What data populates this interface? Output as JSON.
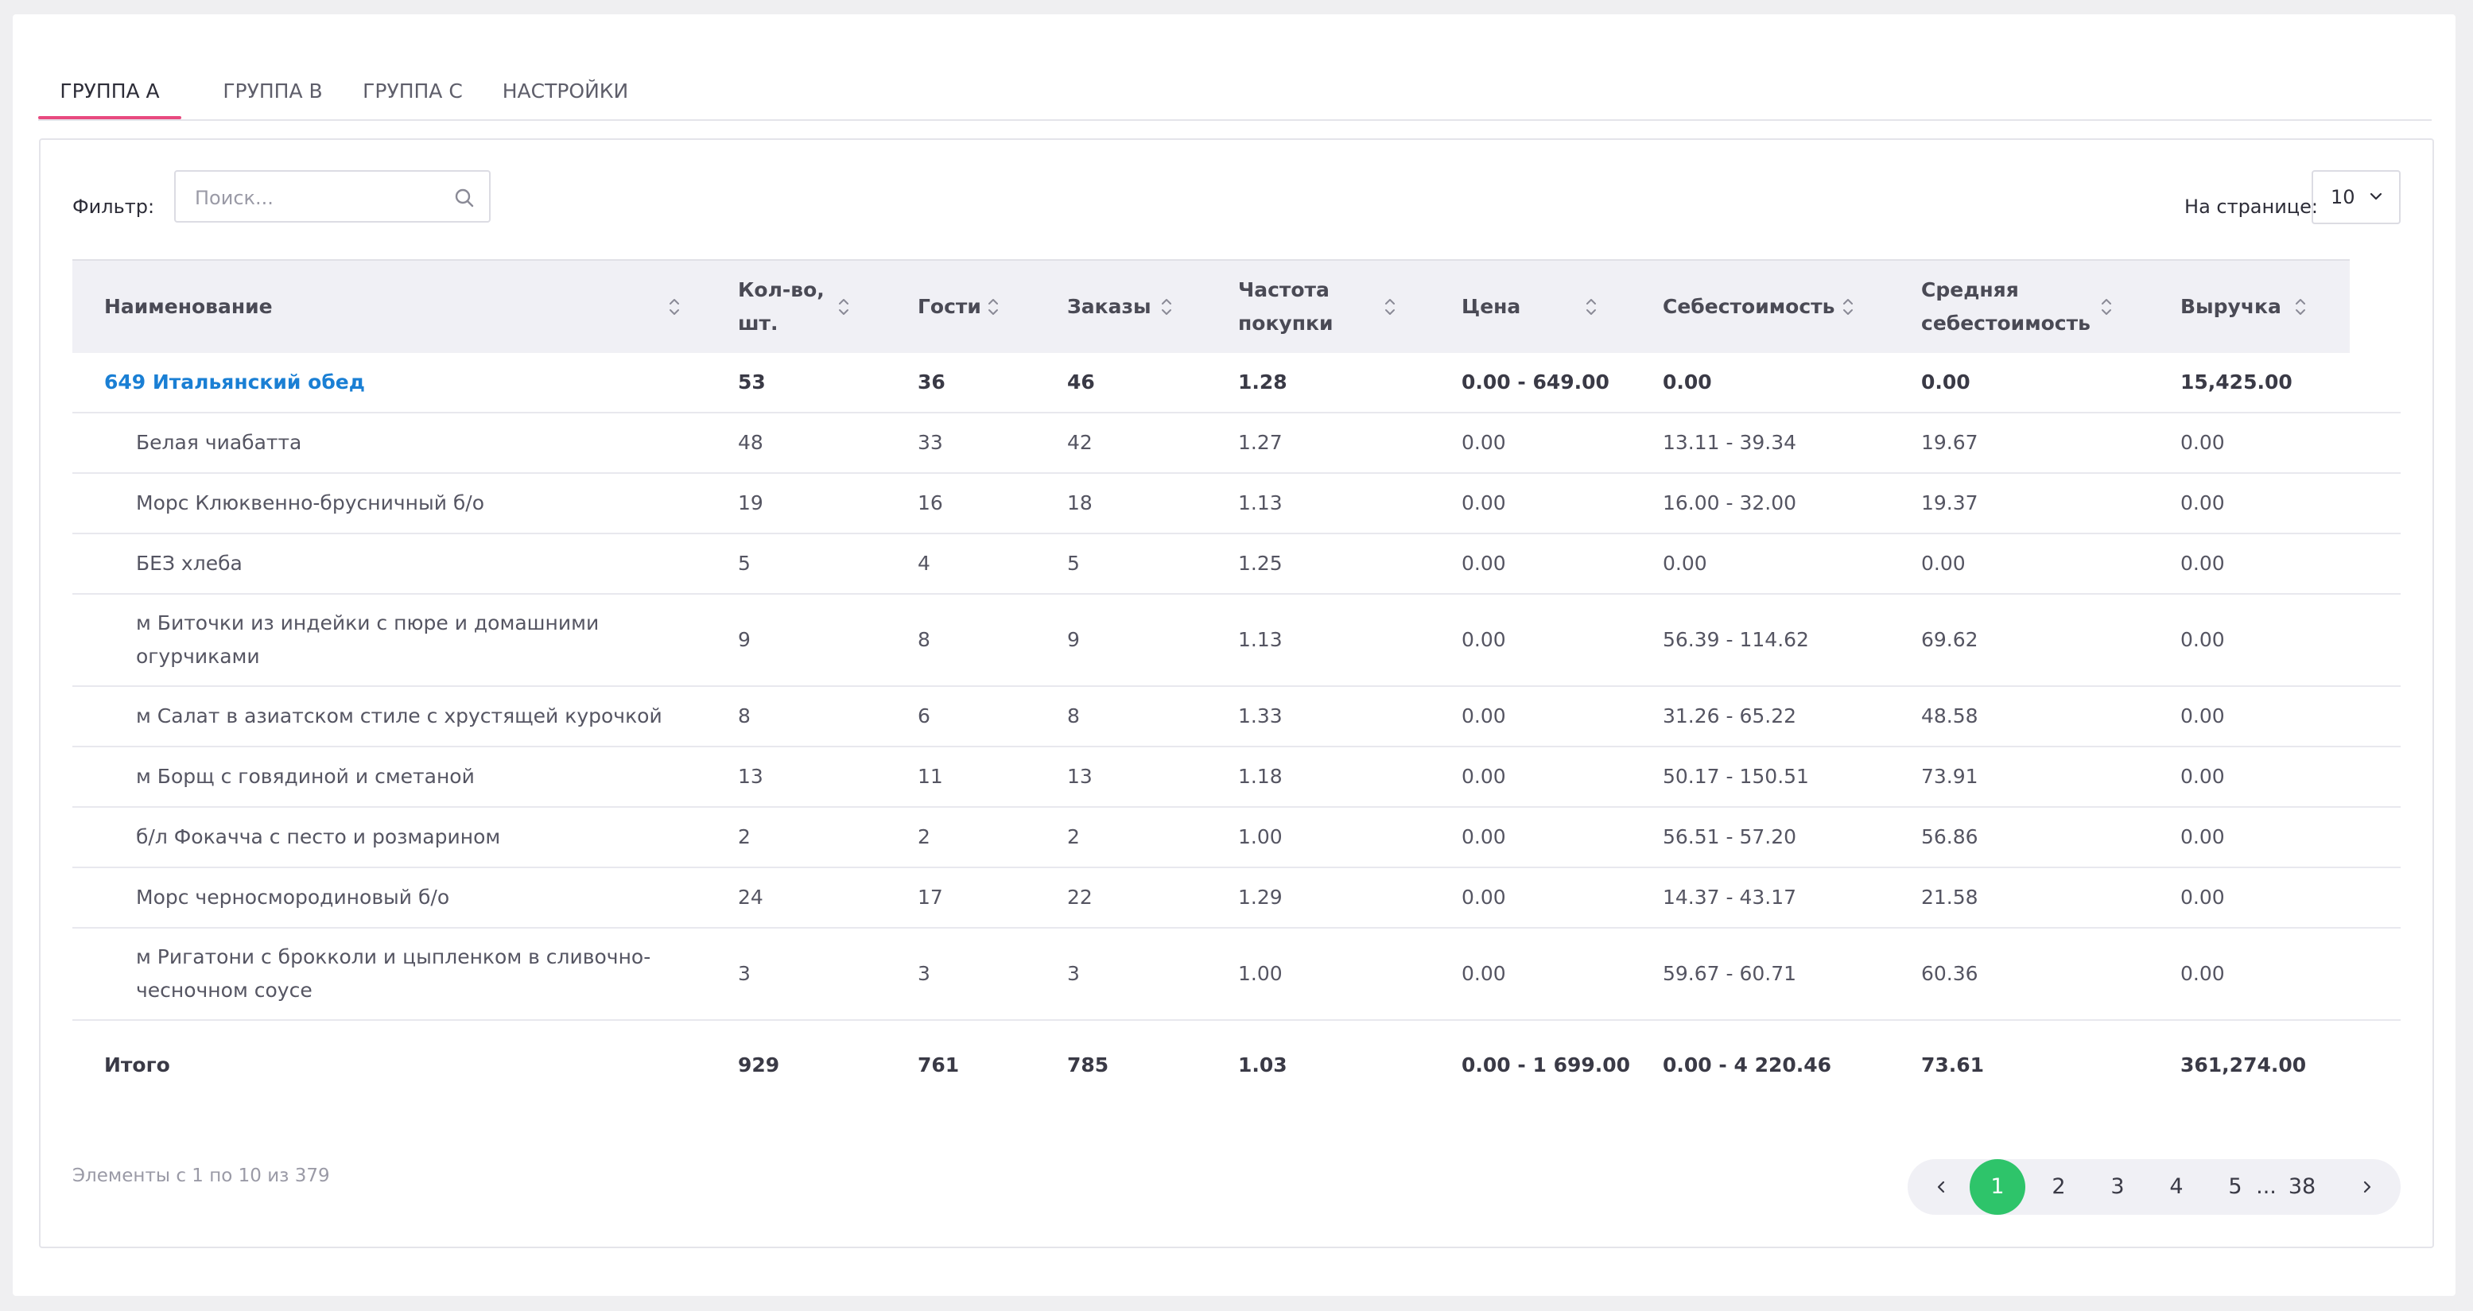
{
  "tabs": [
    {
      "label": "ГРУППА А",
      "active": true
    },
    {
      "label": "ГРУППА В",
      "active": false
    },
    {
      "label": "ГРУППА С",
      "active": false
    },
    {
      "label": "НАСТРОЙКИ",
      "active": false
    }
  ],
  "filter": {
    "label": "Фильтр:",
    "placeholder": "Поиск..."
  },
  "per_page": {
    "label": "На странице:",
    "value": "10"
  },
  "columns": [
    "Наименование",
    "Кол-во,\nшт.",
    "Гости",
    "Заказы",
    "Частота\nпокупки",
    "Цена",
    "Себестоимость",
    "Средняя\nсебестоимость",
    "Выручка"
  ],
  "group_row": [
    "649 Итальянский обед",
    "53",
    "36",
    "46",
    "1.28",
    "0.00 - 649.00",
    "0.00",
    "0.00",
    "15,425.00"
  ],
  "rows": [
    [
      "Белая чиабатта",
      "48",
      "33",
      "42",
      "1.27",
      "0.00",
      "13.11 - 39.34",
      "19.67",
      "0.00"
    ],
    [
      "Морс Клюквенно-брусничный б/о",
      "19",
      "16",
      "18",
      "1.13",
      "0.00",
      "16.00 - 32.00",
      "19.37",
      "0.00"
    ],
    [
      "БЕЗ хлеба",
      "5",
      "4",
      "5",
      "1.25",
      "0.00",
      "0.00",
      "0.00",
      "0.00"
    ],
    [
      "м Биточки из индейки с пюре и домашними огурчиками",
      "9",
      "8",
      "9",
      "1.13",
      "0.00",
      "56.39 - 114.62",
      "69.62",
      "0.00"
    ],
    [
      "м Салат в азиатском стиле с хрустящей курочкой",
      "8",
      "6",
      "8",
      "1.33",
      "0.00",
      "31.26 - 65.22",
      "48.58",
      "0.00"
    ],
    [
      "м Борщ с говядиной и сметаной",
      "13",
      "11",
      "13",
      "1.18",
      "0.00",
      "50.17 - 150.51",
      "73.91",
      "0.00"
    ],
    [
      "б/л Фокачча с песто и розмарином",
      "2",
      "2",
      "2",
      "1.00",
      "0.00",
      "56.51 - 57.20",
      "56.86",
      "0.00"
    ],
    [
      "Морс черносмородиновый б/о",
      "24",
      "17",
      "22",
      "1.29",
      "0.00",
      "14.37 - 43.17",
      "21.58",
      "0.00"
    ],
    [
      "м Ригатони с брокколи и цыпленком в сливочно-чесночном соусе",
      "3",
      "3",
      "3",
      "1.00",
      "0.00",
      "59.67 - 60.71",
      "60.36",
      "0.00"
    ]
  ],
  "total_row": [
    "Итого",
    "929",
    "761",
    "785",
    "1.03",
    "0.00 - 1 699.00",
    "0.00 - 4 220.46",
    "73.61",
    "361,274.00"
  ],
  "status_text": "Элементы с 1 по 10 из 379",
  "pagination": {
    "pages": [
      "1",
      "2",
      "3",
      "4",
      "5"
    ],
    "ellipsis": "...",
    "last": "38",
    "active": "1"
  },
  "colors": {
    "accent_tab": "#e84a7f",
    "link": "#1a7fd4",
    "active_page": "#2ec46a"
  }
}
